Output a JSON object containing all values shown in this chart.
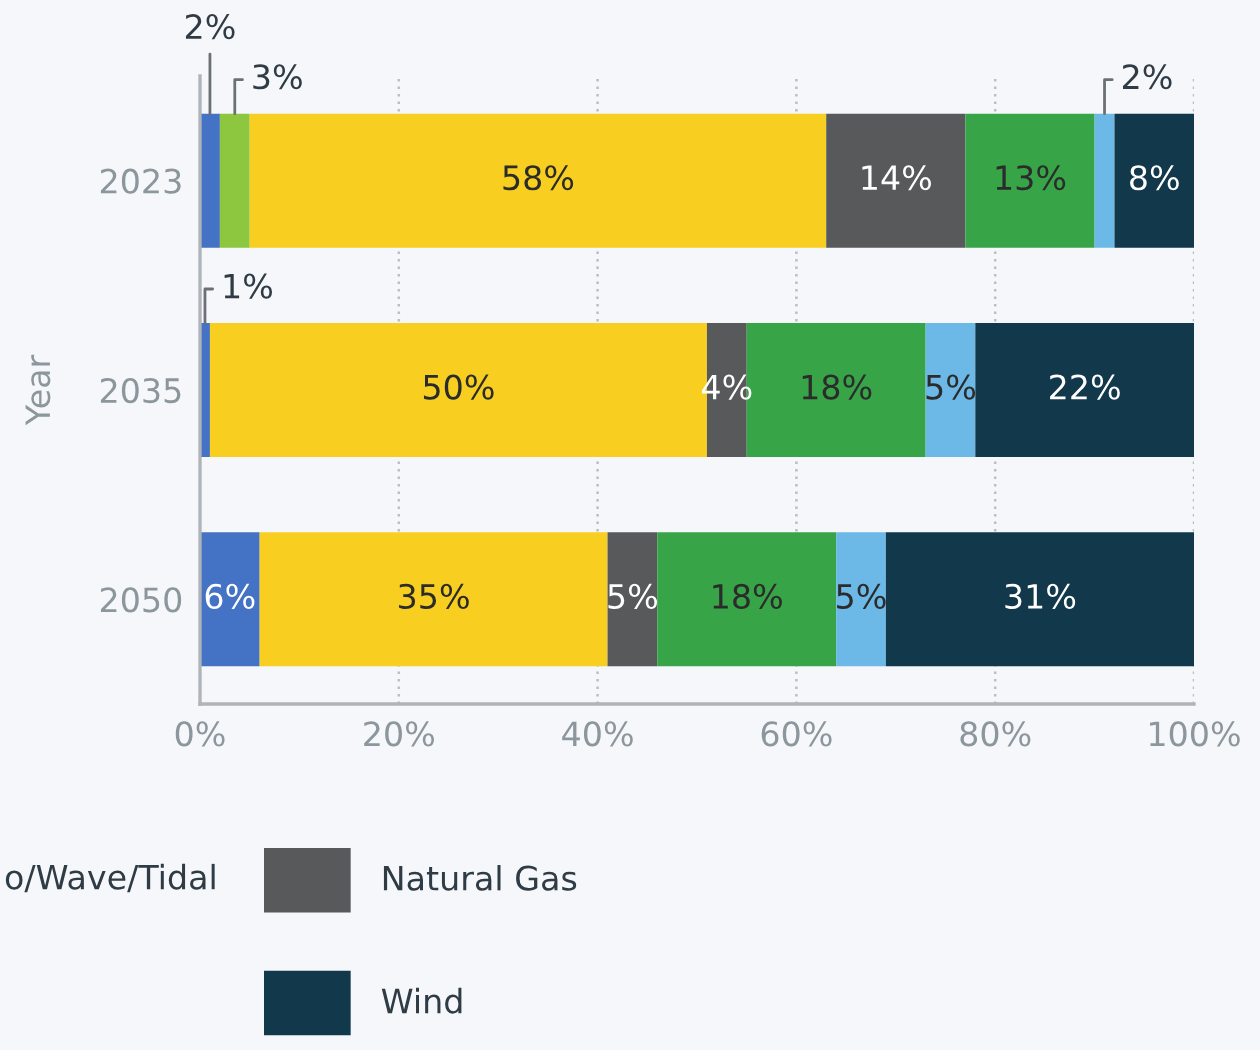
{
  "chart_data": {
    "type": "bar",
    "orientation": "horizontal",
    "stacked": true,
    "categories": [
      "2023",
      "2035",
      "2050"
    ],
    "ylabel": "Year",
    "xlim": [
      0,
      100
    ],
    "xticks": [
      {
        "value": 0,
        "label": "0%"
      },
      {
        "value": 20,
        "label": "20%"
      },
      {
        "value": 40,
        "label": "40%"
      },
      {
        "value": 60,
        "label": "60%"
      },
      {
        "value": 80,
        "label": "80%"
      },
      {
        "value": 100,
        "label": "100%"
      }
    ],
    "grid": "x",
    "legend": "bottom",
    "annotations": [
      "o/Wave/Tidal"
    ],
    "series": [
      {
        "color": "#4472c4",
        "values": [
          2,
          1,
          6
        ],
        "value_labels": [
          "2%",
          "1%",
          "6%"
        ]
      },
      {
        "color": "#8dc63f",
        "values": [
          3,
          null,
          null
        ],
        "value_labels": [
          "3%",
          null,
          null
        ]
      },
      {
        "color": "#f8cf20",
        "values": [
          58,
          50,
          35
        ],
        "value_labels": [
          "58%",
          "50%",
          "35%"
        ]
      },
      {
        "name": "Natural Gas",
        "color": "#58595b",
        "values": [
          14,
          4,
          5
        ],
        "value_labels": [
          "14%",
          "4%",
          "5%"
        ]
      },
      {
        "color": "#37a547",
        "values": [
          13,
          18,
          18
        ],
        "value_labels": [
          "13%",
          "18%",
          "18%"
        ]
      },
      {
        "color": "#6cb8e6",
        "values": [
          2,
          5,
          5
        ],
        "value_labels": [
          "2%",
          "5%",
          "5%"
        ]
      },
      {
        "name": "Wind",
        "color": "#12384b",
        "values": [
          8,
          22,
          31
        ],
        "value_labels": [
          "8%",
          "22%",
          "31%"
        ]
      }
    ]
  }
}
